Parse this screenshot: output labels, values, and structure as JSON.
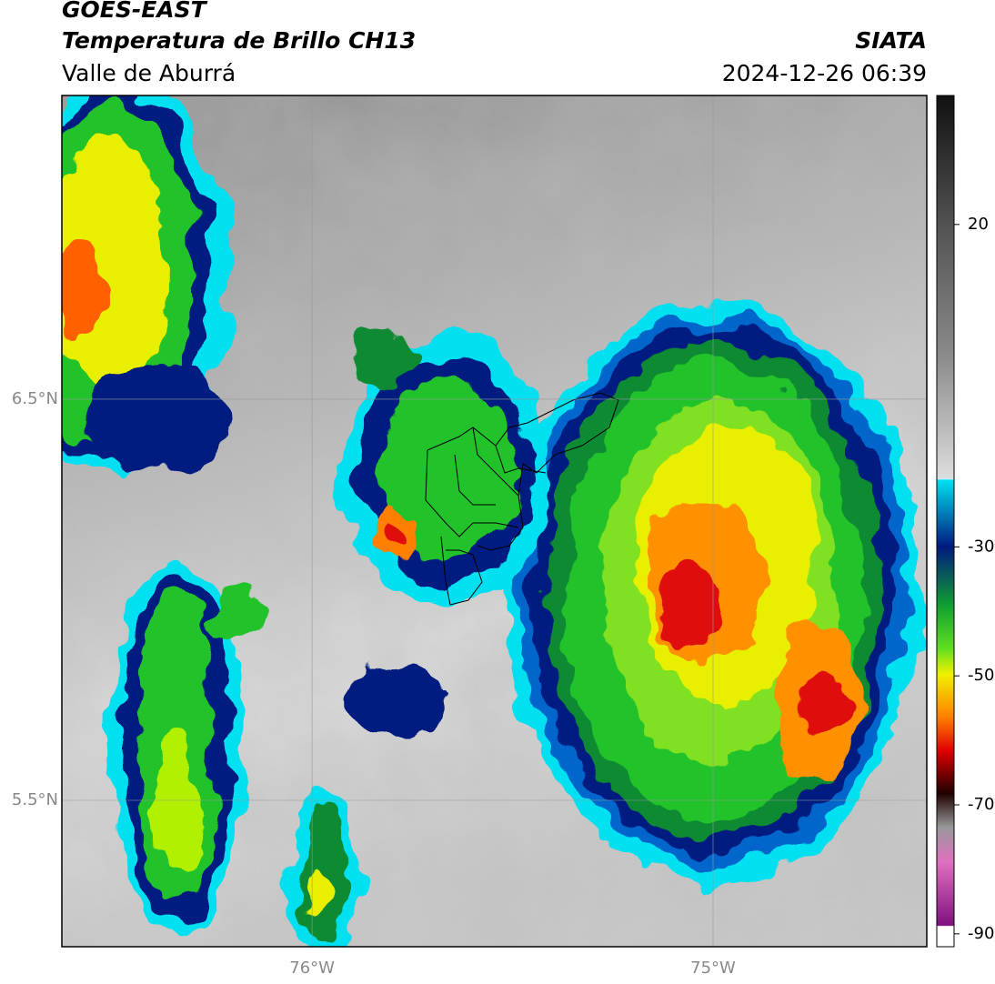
{
  "header": {
    "title": "GOES-EAST",
    "subtitle": "Temperatura de Brillo CH13",
    "region": "Valle de Aburrá",
    "source": "SIATA",
    "datetime": "2024-12-26 06:39"
  },
  "map": {
    "lat_lim": [
      5.135,
      7.257
    ],
    "lon_lim": [
      -76.624,
      -74.467
    ],
    "lat_ticks": [
      {
        "value": 6.5,
        "label": "6.5°N"
      },
      {
        "value": 5.5,
        "label": "5.5°N"
      }
    ],
    "lon_ticks": [
      {
        "value": -76,
        "label": "76°W"
      },
      {
        "value": -75,
        "label": "75°W"
      }
    ],
    "grid": true
  },
  "colorbar": {
    "lim": [
      -92,
      40
    ],
    "ticks": [
      20,
      -30,
      -50,
      -70,
      -90
    ]
  }
}
